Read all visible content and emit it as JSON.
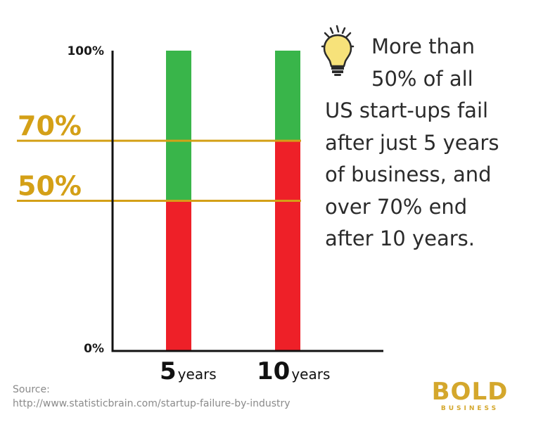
{
  "chart_data": {
    "type": "bar",
    "stacked": true,
    "categories": [
      {
        "number": "5",
        "unit": "years"
      },
      {
        "number": "10",
        "unit": "years"
      }
    ],
    "series": [
      {
        "values": [
          50,
          70
        ]
      },
      {
        "values": [
          50,
          30
        ]
      }
    ],
    "ylim": [
      0,
      100
    ],
    "y_tick_labels": [
      "100%",
      "0%"
    ],
    "reference_lines": [
      {
        "value": 70,
        "label": "70%"
      },
      {
        "value": 50,
        "label": "50%"
      }
    ],
    "colors": {
      "failed": "#ee2028",
      "survived": "#39b54a",
      "reference": "#d4a017",
      "axis": "#111111"
    }
  },
  "headline": {
    "lines": [
      "More than",
      "50% of all",
      "US start-ups fail",
      "after just 5 years",
      "of business, and",
      "over 70% end",
      "after 10 years."
    ],
    "icon": "lightbulb-icon"
  },
  "source": {
    "label": "Source:",
    "url": "http://www.statisticbrain.com/startup-failure-by-industry"
  },
  "logo": {
    "main": "BOLD",
    "sub": "BUSINESS"
  }
}
